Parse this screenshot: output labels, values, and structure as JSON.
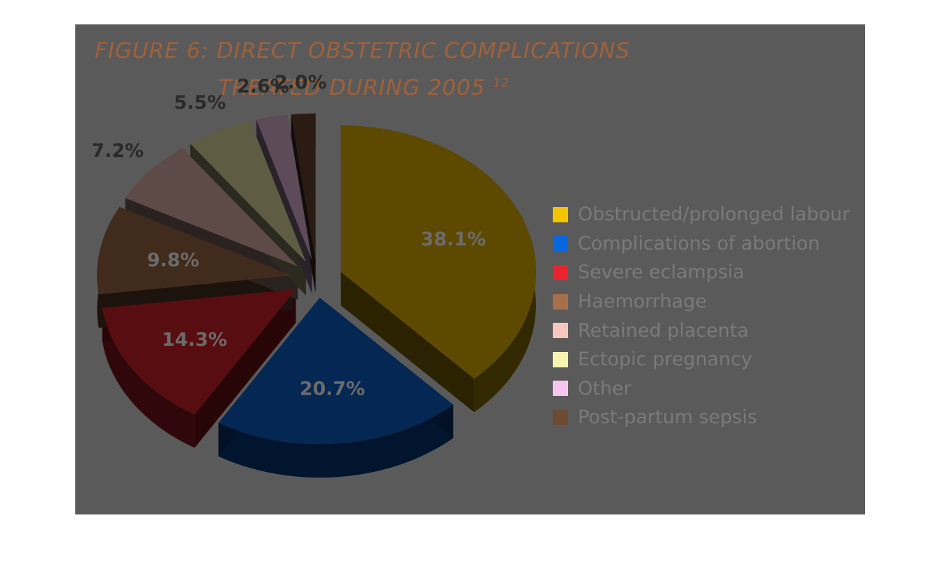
{
  "figure": {
    "title_line1": "FIGURE 6: DIRECT OBSTETRIC COMPLICATIONS",
    "title_line2": "TREATED DURING 2005",
    "title_superscript": "12",
    "title_color": "#a0613a",
    "background_color": "#5a5a5a"
  },
  "chart_data": {
    "type": "pie",
    "style": "3d-exploded",
    "title": "FIGURE 6: DIRECT OBSTETRIC COMPLICATIONS TREATED DURING 2005",
    "legend_position": "right",
    "series": [
      {
        "name": "Obstructed/prolonged labour",
        "value": 38.1,
        "label": "38.1%",
        "color": "#f5c400"
      },
      {
        "name": "Complications of abortion",
        "value": 20.7,
        "label": "20.7%",
        "color": "#0a66dd"
      },
      {
        "name": "Severe eclampsia",
        "value": 14.3,
        "label": "14.3%",
        "color": "#e8232e"
      },
      {
        "name": "Haemorrhage",
        "value": 9.8,
        "label": "9.8%",
        "color": "#a8704a"
      },
      {
        "name": "Retained placenta",
        "value": 7.2,
        "label": "7.2%",
        "color": "#f7c6be"
      },
      {
        "name": "Ectopic pregnancy",
        "value": 5.5,
        "label": "5.5%",
        "color": "#f7f4b0"
      },
      {
        "name": "Other",
        "value": 2.6,
        "label": "2.6%",
        "color": "#f6c6ee"
      },
      {
        "name": "Post-partum sepsis",
        "value": 2.0,
        "label": "2.0%",
        "color": "#6e4a33"
      }
    ]
  }
}
